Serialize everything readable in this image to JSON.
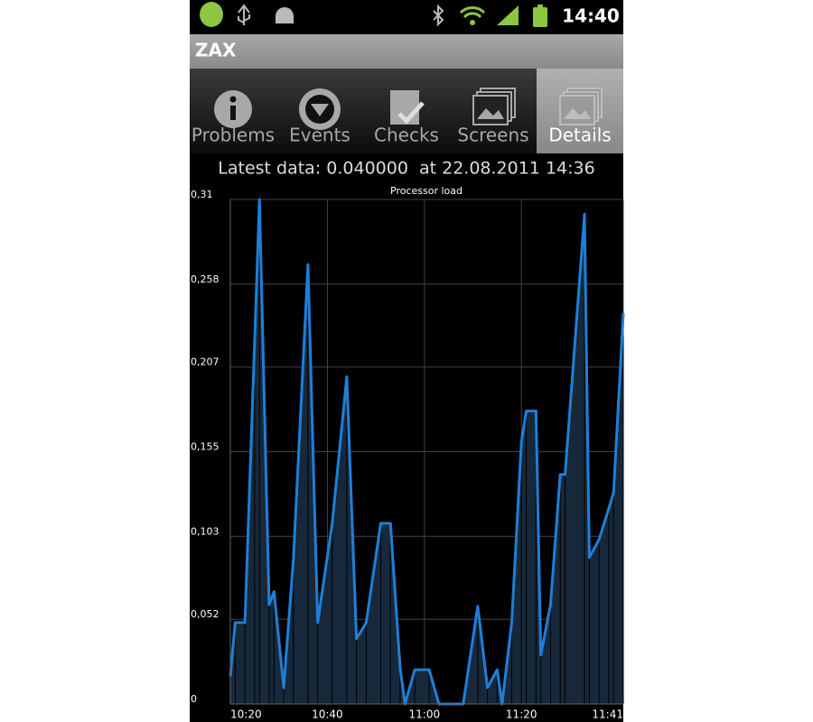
{
  "status_bar": {
    "time": "14:40"
  },
  "app_bar": {
    "title": "ZAX"
  },
  "tabs": [
    {
      "label": "Problems",
      "selected": false
    },
    {
      "label": "Events",
      "selected": false
    },
    {
      "label": "Checks",
      "selected": false
    },
    {
      "label": "Screens",
      "selected": false
    },
    {
      "label": "Details",
      "selected": true
    }
  ],
  "latest_data": "Latest data: 0.040000  at 22.08.2011 14:36",
  "chart_data": {
    "type": "line",
    "title": "Processor load",
    "x": [
      "10:20",
      "10:21",
      "10:23",
      "10:25",
      "10:26",
      "10:28",
      "10:29",
      "10:31",
      "10:33",
      "10:36",
      "10:38",
      "10:41",
      "10:44",
      "10:46",
      "10:48",
      "10:51",
      "10:53",
      "10:55",
      "10:56",
      "10:58",
      "11:01",
      "11:03",
      "11:08",
      "11:11",
      "11:13",
      "11:15",
      "11:16",
      "11:18",
      "11:20",
      "11:21",
      "11:23",
      "11:24",
      "11:26",
      "11:28",
      "11:29",
      "11:33",
      "11:34",
      "11:36",
      "11:38",
      "11:39",
      "11:41"
    ],
    "values": [
      0.017,
      0.05,
      0.05,
      0.222,
      0.31,
      0.061,
      0.069,
      0.01,
      0.089,
      0.27,
      0.05,
      0.111,
      0.201,
      0.04,
      0.05,
      0.111,
      0.111,
      0.022,
      0,
      0.021,
      0.021,
      0,
      0,
      0.06,
      0.01,
      0.021,
      0,
      0.05,
      0.161,
      0.18,
      0.18,
      0.03,
      0.061,
      0.141,
      0.141,
      0.301,
      0.09,
      0.101,
      0.12,
      0.13,
      0.24
    ],
    "color": "#1e7fd8",
    "fill_color": "#16283a",
    "xlim": [
      "10:20",
      "11:41"
    ],
    "xticks": [
      "10:20",
      "10:40",
      "11:00",
      "11:20",
      "11:41"
    ],
    "ylim": [
      0,
      0.31
    ],
    "yticks": [
      0,
      {
        "value": 0.052,
        "label": "0,052"
      },
      {
        "value": 0.103,
        "label": "0,103"
      },
      {
        "value": 0.155,
        "label": "0,155"
      },
      {
        "value": 0.207,
        "label": "0,207"
      },
      {
        "value": 0.258,
        "label": "0,258"
      },
      {
        "value": 0.31,
        "label": "0,31"
      }
    ],
    "grid": true
  }
}
